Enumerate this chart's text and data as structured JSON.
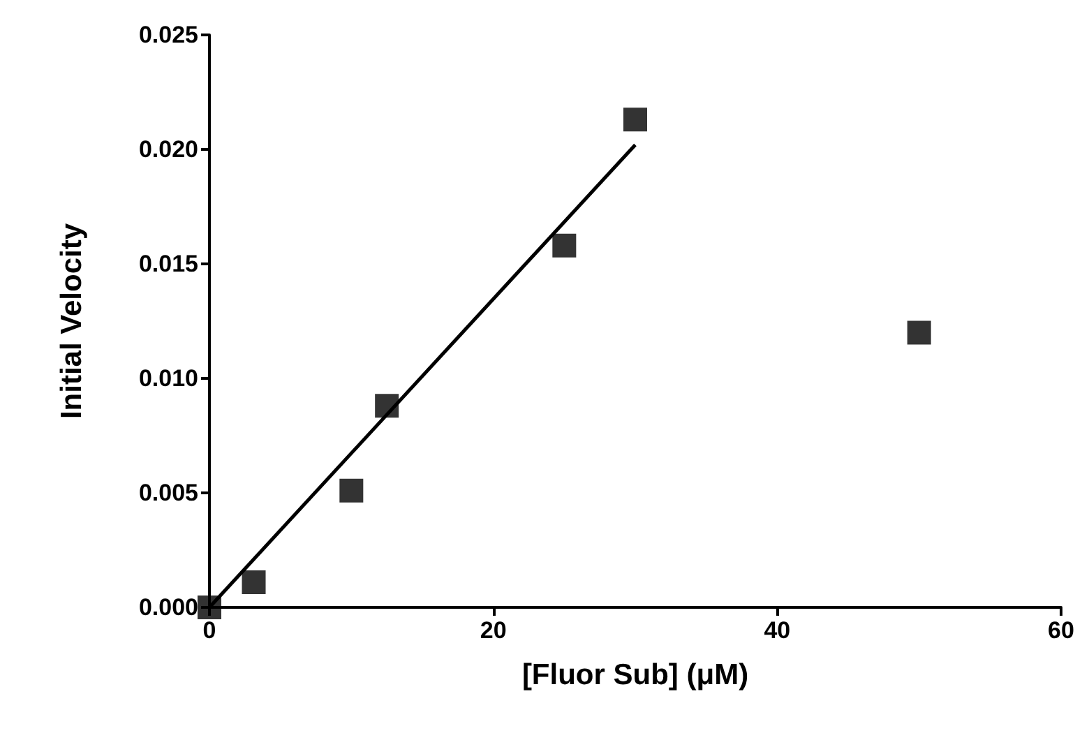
{
  "chart_data": {
    "type": "scatter",
    "xlabel": "[Fluor Sub] (μM)",
    "ylabel": "Initial Velocity",
    "marker": "square",
    "grid": false,
    "xlim": [
      0,
      60
    ],
    "xticks": [
      0,
      20,
      40,
      60
    ],
    "ylim": [
      0,
      0.025
    ],
    "yticks": [
      {
        "value": 0,
        "label": "0.000"
      },
      {
        "value": 0.005,
        "label": "0.005"
      },
      {
        "value": 0.01,
        "label": "0.010"
      },
      {
        "value": 0.015,
        "label": "0.015"
      },
      {
        "value": 0.02,
        "label": "0.020"
      },
      {
        "value": 0.025,
        "label": "0.025"
      }
    ],
    "series": [
      {
        "color": "#000000",
        "x": [
          0,
          3.125,
          10,
          12.5,
          25,
          30,
          50
        ],
        "values": [
          0,
          0.0011,
          0.0051,
          0.0088,
          0.0158,
          0.0213,
          0.012
        ]
      },
      {
        "type": "line",
        "color": "#000000",
        "marker": "none",
        "line_style": "solid",
        "x": [
          0,
          30
        ],
        "values": [
          0,
          0.0202
        ]
      }
    ]
  }
}
